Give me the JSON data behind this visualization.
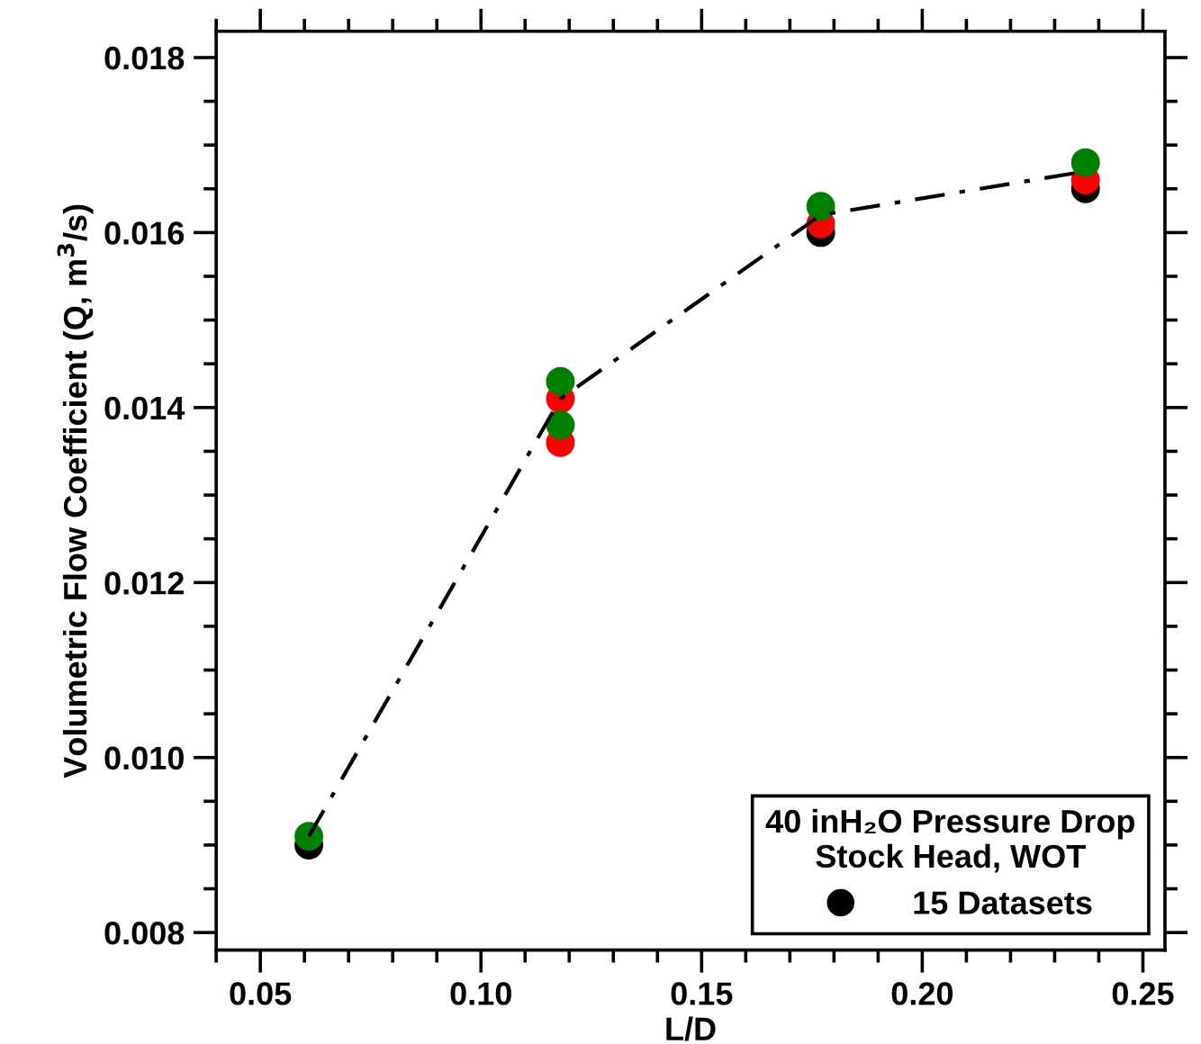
{
  "chart_data": {
    "type": "scatter",
    "xlabel": "L/D",
    "ylabel": "Volumetric Flow Coefficient (Q, m$^{3}$/s)",
    "legend_title": "40 inH₂O Pressure Drop\nStock Head, WOT",
    "legend": "bottom right",
    "marker": "circle",
    "xlim": [
      0.04,
      0.255
    ],
    "ylim": [
      0.0078,
      0.0183
    ],
    "xticks": [
      {
        "value": 0.05,
        "label": "0.05"
      },
      {
        "value": 0.1,
        "label": "0.10"
      },
      {
        "value": 0.15,
        "label": "0.15"
      },
      {
        "value": 0.2,
        "label": "0.20"
      },
      {
        "value": 0.25,
        "label": "0.25"
      }
    ],
    "yticks": [
      {
        "value": 0.008,
        "label": "0.008"
      },
      {
        "value": 0.01,
        "label": "0.010"
      },
      {
        "value": 0.012,
        "label": "0.012"
      },
      {
        "value": 0.014,
        "label": "0.014"
      },
      {
        "value": 0.016,
        "label": "0.016"
      },
      {
        "value": 0.018,
        "label": "0.018"
      }
    ],
    "series": [
      {
        "type": "line",
        "color": "#000000",
        "line_style": "dashdot",
        "marker": "none",
        "x": [
          0.061,
          0.118,
          0.177,
          0.237
        ],
        "values": [
          0.0091,
          0.0141,
          0.0162,
          0.0167
        ]
      },
      {
        "name": "15 Datasets",
        "color": "#000000",
        "x": [
          0.061,
          0.118,
          0.177,
          0.237
        ],
        "values": [
          0.009,
          null,
          0.016,
          0.0165
        ]
      },
      {
        "color": "#ff0000",
        "x": [
          0.118,
          0.118,
          0.177,
          0.237
        ],
        "values": [
          0.0136,
          0.0141,
          0.0161,
          0.0166
        ]
      },
      {
        "color": "#008000",
        "x": [
          0.061,
          0.118,
          0.118,
          0.177,
          0.237
        ],
        "values": [
          0.0091,
          0.0138,
          0.0143,
          0.0163,
          0.0168
        ]
      }
    ]
  }
}
